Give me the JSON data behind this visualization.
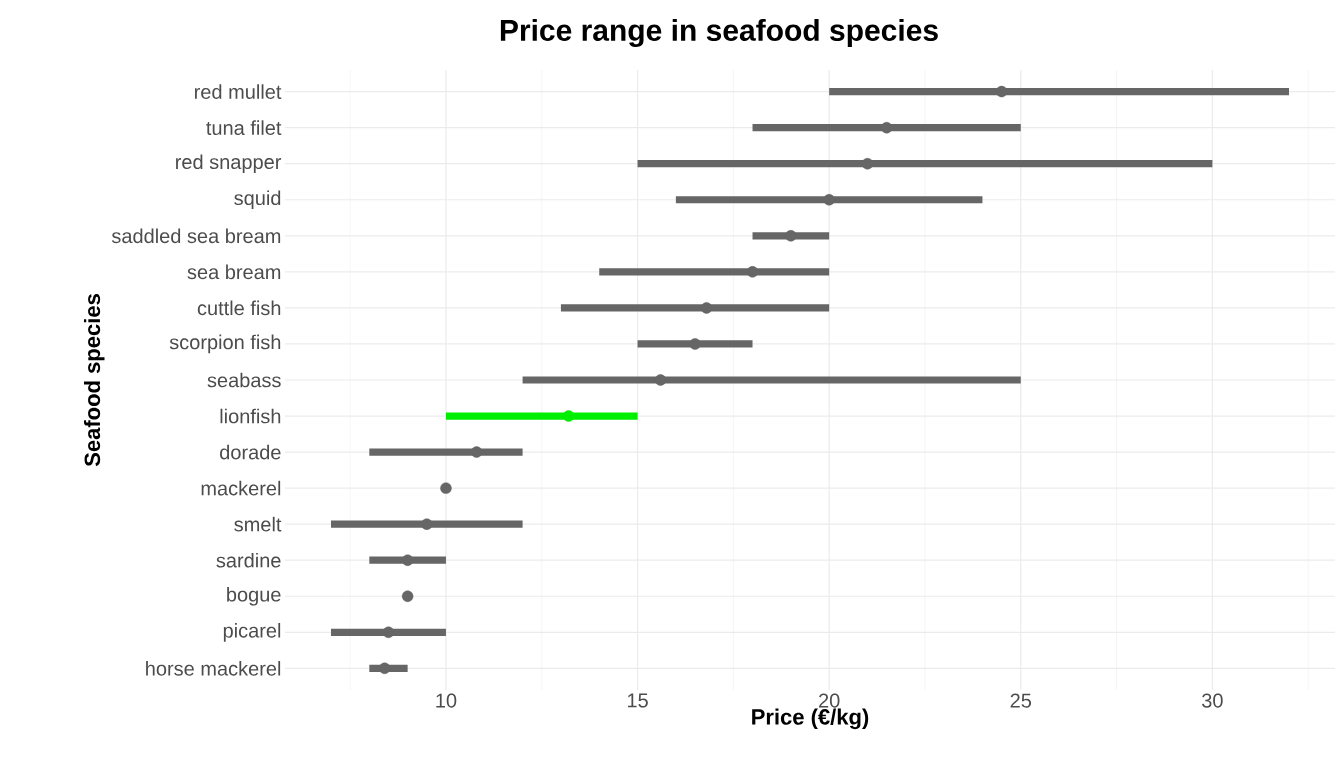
{
  "chart_data": {
    "type": "bar",
    "orientation": "horizontal",
    "title": "Price range in seafood species",
    "xlabel": "Price (€/kg)",
    "ylabel": "Seafood species",
    "categories": [
      "red mullet",
      "tuna filet",
      "red snapper",
      "squid",
      "saddled sea bream",
      "sea bream",
      "cuttle fish",
      "scorpion fish",
      "seabass",
      "lionfish",
      "dorade",
      "mackerel",
      "smelt",
      "sardine",
      "bogue",
      "picarel",
      "horse mackerel"
    ],
    "series": [
      {
        "values": [
          12,
          7,
          15,
          8,
          2,
          6,
          7,
          3,
          13,
          5,
          4,
          null,
          5,
          2,
          null,
          3,
          1
        ],
        "base": [
          20,
          18,
          15,
          16,
          18,
          14,
          13,
          15,
          12,
          10,
          8,
          null,
          7,
          8,
          null,
          7,
          8
        ],
        "colors": [
          "#666666",
          "#666666",
          "#666666",
          "#666666",
          "#666666",
          "#666666",
          "#666666",
          "#666666",
          "#666666",
          "#00ee00",
          "#666666",
          "#666666",
          "#666666",
          "#666666",
          "#666666",
          "#666666",
          "#666666"
        ]
      },
      {
        "type": "scatter",
        "marker": "circle",
        "values": [
          24.5,
          21.5,
          21.0,
          20.0,
          19.0,
          18.0,
          16.8,
          16.5,
          15.6,
          13.2,
          10.8,
          10.0,
          9.5,
          9.0,
          9.0,
          8.5,
          8.4
        ],
        "colors": [
          "#666666",
          "#666666",
          "#666666",
          "#666666",
          "#666666",
          "#666666",
          "#666666",
          "#666666",
          "#666666",
          "#00ee00",
          "#666666",
          "#666666",
          "#666666",
          "#666666",
          "#666666",
          "#666666",
          "#666666"
        ]
      }
    ],
    "xlim": [
      5.8,
      33.2
    ],
    "xticks": [
      10,
      15,
      20,
      25,
      30
    ],
    "grid": true
  }
}
